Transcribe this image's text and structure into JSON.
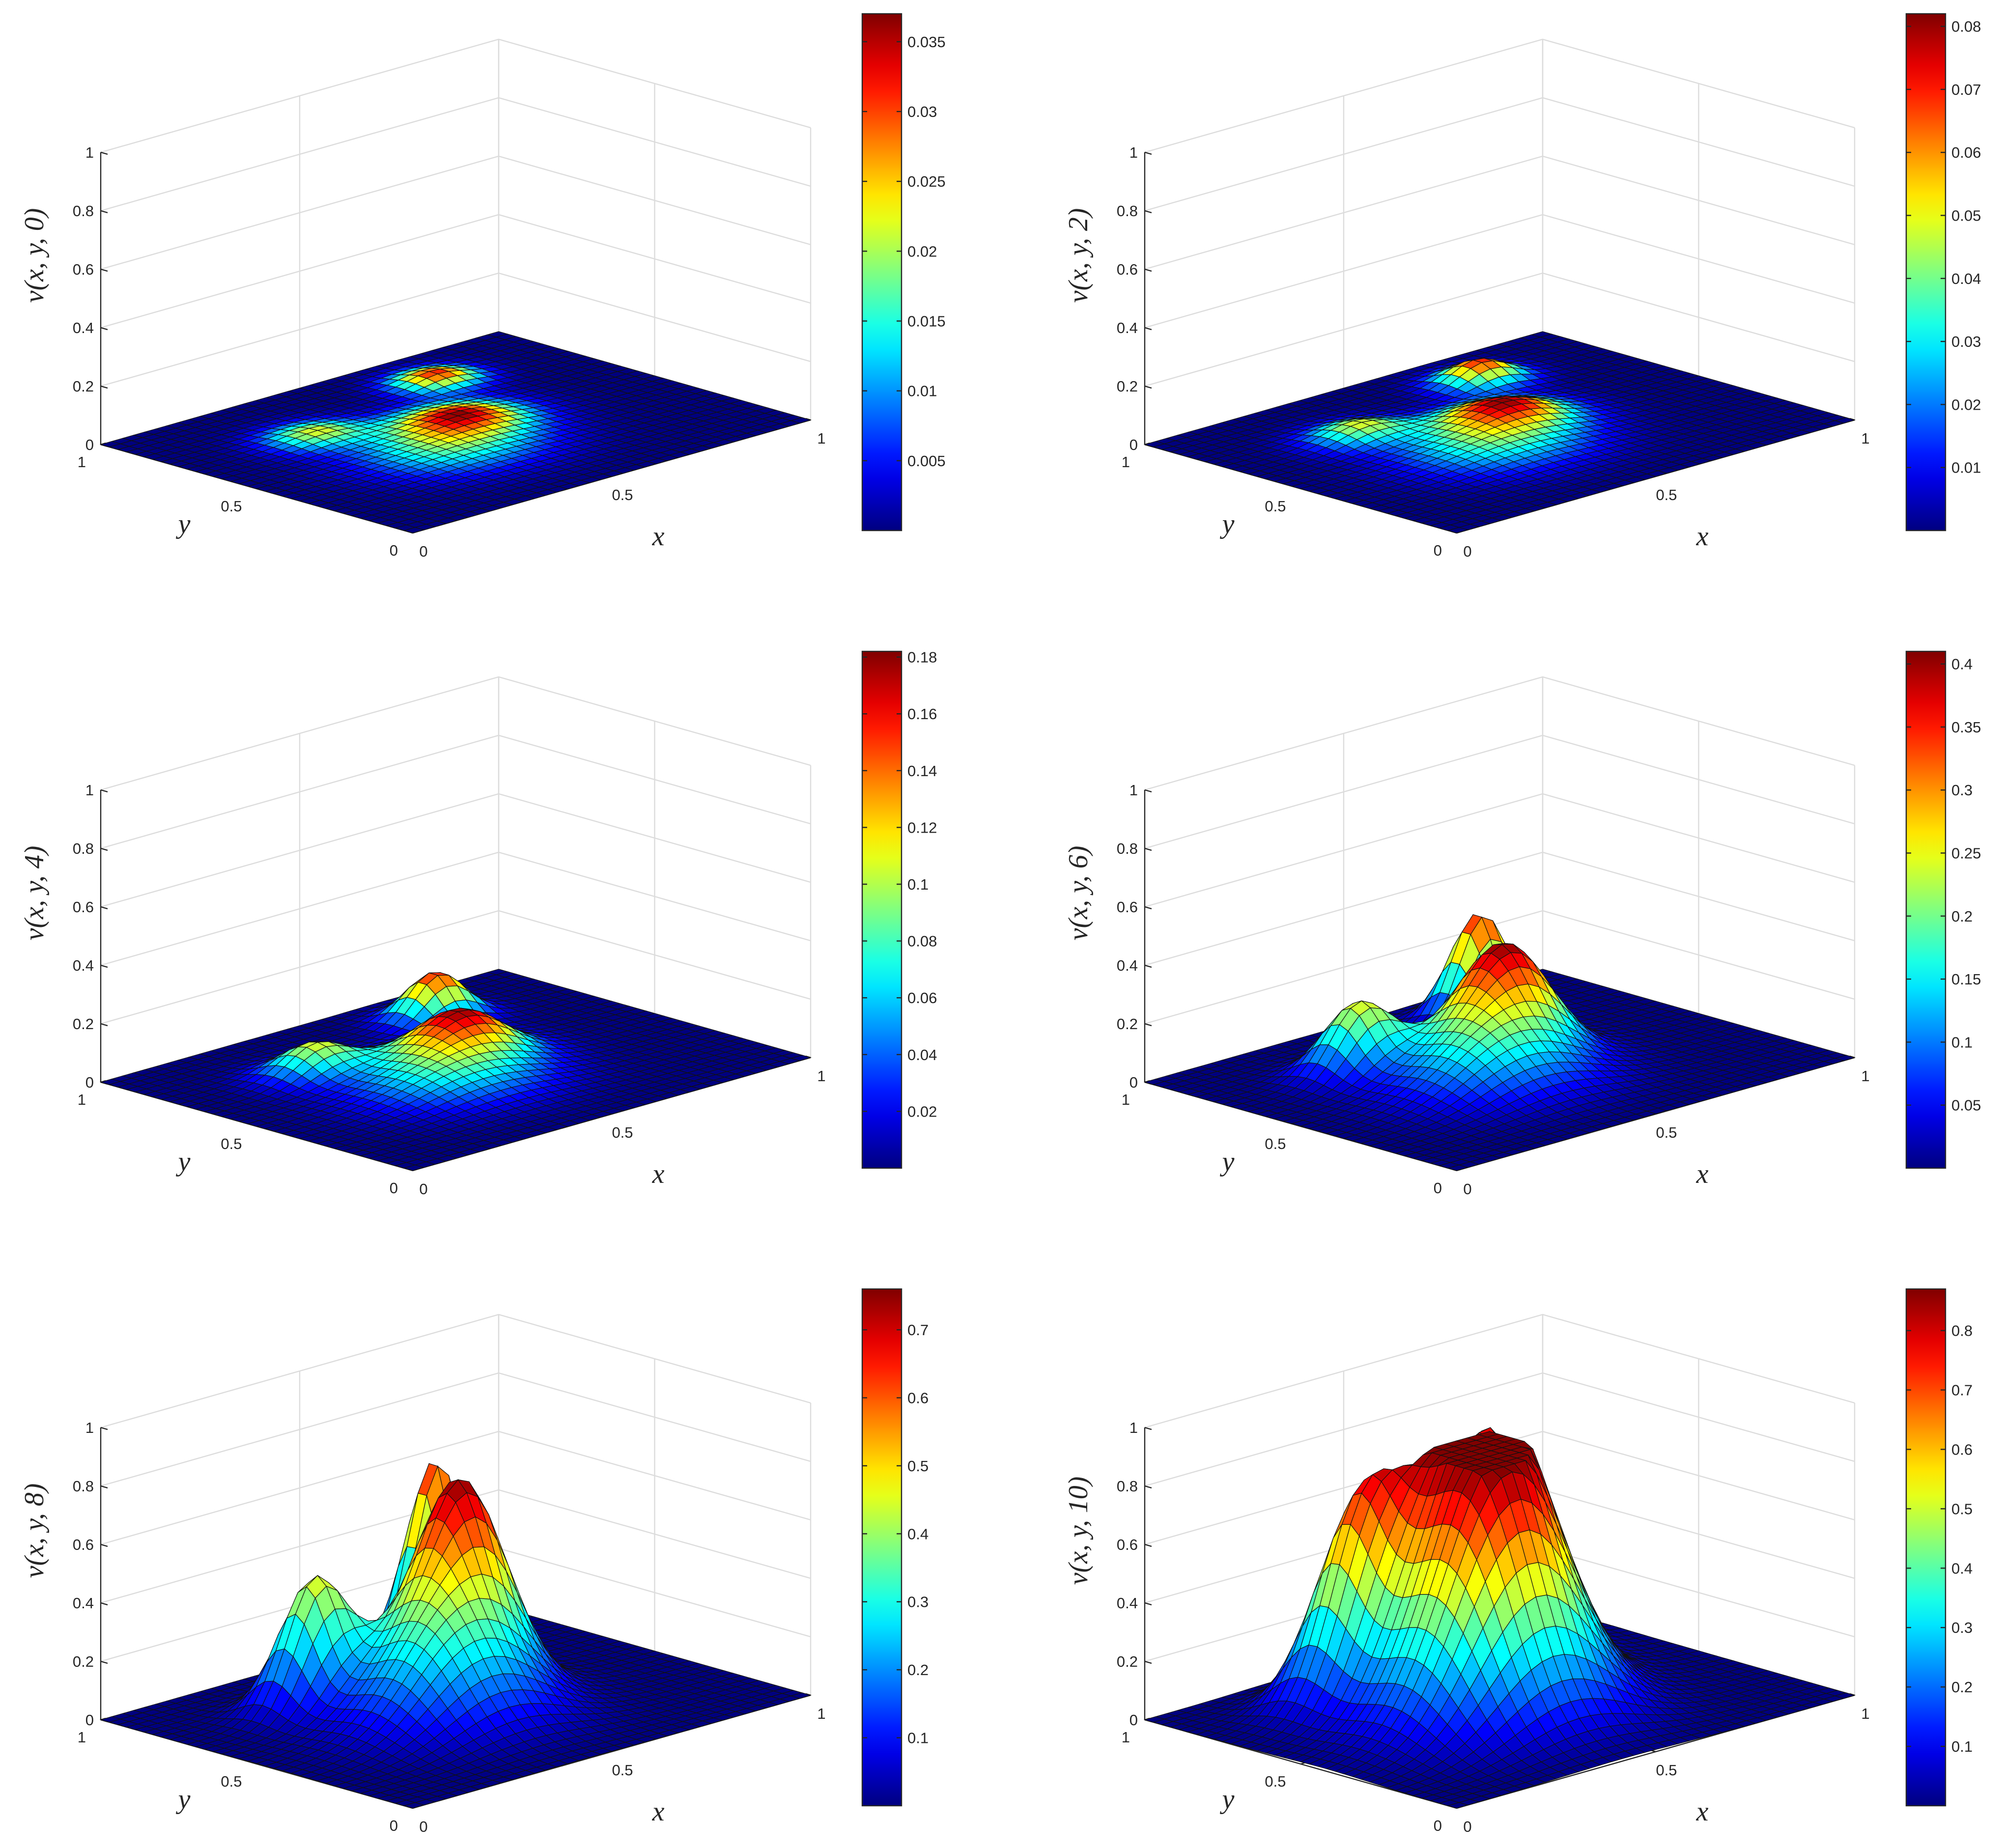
{
  "colormap": "jet",
  "chart_data": [
    {
      "type": "surface",
      "zlabel": "v(x, y, 0)",
      "xlabel": "x",
      "ylabel": "y",
      "xlim": [
        0,
        1
      ],
      "ylim": [
        0,
        1
      ],
      "zlim": [
        0,
        1
      ],
      "xticks": [
        "0",
        "0.5",
        "1"
      ],
      "yticks": [
        "0",
        "0.5",
        "1"
      ],
      "zticks": [
        "0",
        "0.2",
        "0.4",
        "0.6",
        "0.8",
        "1"
      ],
      "grid": true,
      "peak_value": 0.037,
      "color_max": 0.037,
      "colorbar_ticks": [
        "0.005",
        "0.01",
        "0.015",
        "0.02",
        "0.025",
        "0.03",
        "0.035"
      ],
      "colorbar_tick_values": [
        0.005,
        0.01,
        0.015,
        0.02,
        0.025,
        0.03,
        0.035
      ],
      "shape": "flat",
      "mode": "bumps"
    },
    {
      "type": "surface",
      "zlabel": "v(x, y, 2)",
      "xlabel": "x",
      "ylabel": "y",
      "xlim": [
        0,
        1
      ],
      "ylim": [
        0,
        1
      ],
      "zlim": [
        0,
        1
      ],
      "xticks": [
        "0",
        "0.5",
        "1"
      ],
      "yticks": [
        "0",
        "0.5",
        "1"
      ],
      "zticks": [
        "0",
        "0.2",
        "0.4",
        "0.6",
        "0.8",
        "1"
      ],
      "grid": true,
      "peak_value": 0.082,
      "color_max": 0.082,
      "colorbar_ticks": [
        "0.01",
        "0.02",
        "0.03",
        "0.04",
        "0.05",
        "0.06",
        "0.07",
        "0.08"
      ],
      "colorbar_tick_values": [
        0.01,
        0.02,
        0.03,
        0.04,
        0.05,
        0.06,
        0.07,
        0.08
      ],
      "shape": "flat",
      "mode": "bumps"
    },
    {
      "type": "surface",
      "zlabel": "v(x, y, 4)",
      "xlabel": "x",
      "ylabel": "y",
      "xlim": [
        0,
        1
      ],
      "ylim": [
        0,
        1
      ],
      "zlim": [
        0,
        1
      ],
      "xticks": [
        "0",
        "0.5",
        "1"
      ],
      "yticks": [
        "0",
        "0.5",
        "1"
      ],
      "zticks": [
        "0",
        "0.2",
        "0.4",
        "0.6",
        "0.8",
        "1"
      ],
      "grid": true,
      "peak_value": 0.18,
      "color_max": 0.182,
      "colorbar_ticks": [
        "0.02",
        "0.04",
        "0.06",
        "0.08",
        "0.1",
        "0.12",
        "0.14",
        "0.16",
        "0.18"
      ],
      "colorbar_tick_values": [
        0.02,
        0.04,
        0.06,
        0.08,
        0.1,
        0.12,
        0.14,
        0.16,
        0.18
      ],
      "shape": "bumps",
      "mode": "bumps"
    },
    {
      "type": "surface",
      "zlabel": "v(x, y, 6)",
      "xlabel": "x",
      "ylabel": "y",
      "xlim": [
        0,
        1
      ],
      "ylim": [
        0,
        1
      ],
      "zlim": [
        0,
        1
      ],
      "xticks": [
        "0",
        "0.5",
        "1"
      ],
      "yticks": [
        "0",
        "0.5",
        "1"
      ],
      "zticks": [
        "0",
        "0.2",
        "0.4",
        "0.6",
        "0.8",
        "1"
      ],
      "grid": true,
      "peak_value": 0.41,
      "color_max": 0.41,
      "colorbar_ticks": [
        "0.05",
        "0.1",
        "0.15",
        "0.2",
        "0.25",
        "0.3",
        "0.35",
        "0.4"
      ],
      "colorbar_tick_values": [
        0.05,
        0.1,
        0.15,
        0.2,
        0.25,
        0.3,
        0.35,
        0.4
      ],
      "shape": "bumps",
      "mode": "bumps"
    },
    {
      "type": "surface",
      "zlabel": "v(x, y, 8)",
      "xlabel": "x",
      "ylabel": "y",
      "xlim": [
        0,
        1
      ],
      "ylim": [
        0,
        1
      ],
      "zlim": [
        0,
        1
      ],
      "xticks": [
        "0",
        "0.5",
        "1"
      ],
      "yticks": [
        "0",
        "0.5",
        "1"
      ],
      "zticks": [
        "0",
        "0.2",
        "0.4",
        "0.6",
        "0.8",
        "1"
      ],
      "grid": true,
      "peak_value": 0.76,
      "color_max": 0.76,
      "colorbar_ticks": [
        "0.1",
        "0.2",
        "0.3",
        "0.4",
        "0.5",
        "0.6",
        "0.7"
      ],
      "colorbar_tick_values": [
        0.1,
        0.2,
        0.3,
        0.4,
        0.5,
        0.6,
        0.7
      ],
      "shape": "bumps",
      "mode": "bumps"
    },
    {
      "type": "surface",
      "zlabel": "v(x, y, 10)",
      "xlabel": "x",
      "ylabel": "y",
      "xlim": [
        0,
        1
      ],
      "ylim": [
        0,
        1
      ],
      "zlim": [
        0,
        1
      ],
      "xticks": [
        "0",
        "0.5",
        "1"
      ],
      "yticks": [
        "0",
        "0.5",
        "1"
      ],
      "zticks": [
        "0",
        "0.2",
        "0.4",
        "0.6",
        "0.8",
        "1"
      ],
      "grid": true,
      "peak_value": 0.87,
      "color_max": 0.87,
      "colorbar_ticks": [
        "0.1",
        "0.2",
        "0.3",
        "0.4",
        "0.5",
        "0.6",
        "0.7",
        "0.8"
      ],
      "colorbar_tick_values": [
        0.1,
        0.2,
        0.3,
        0.4,
        0.5,
        0.6,
        0.7,
        0.8
      ],
      "shape": "plateau",
      "mode": "plateau"
    }
  ]
}
